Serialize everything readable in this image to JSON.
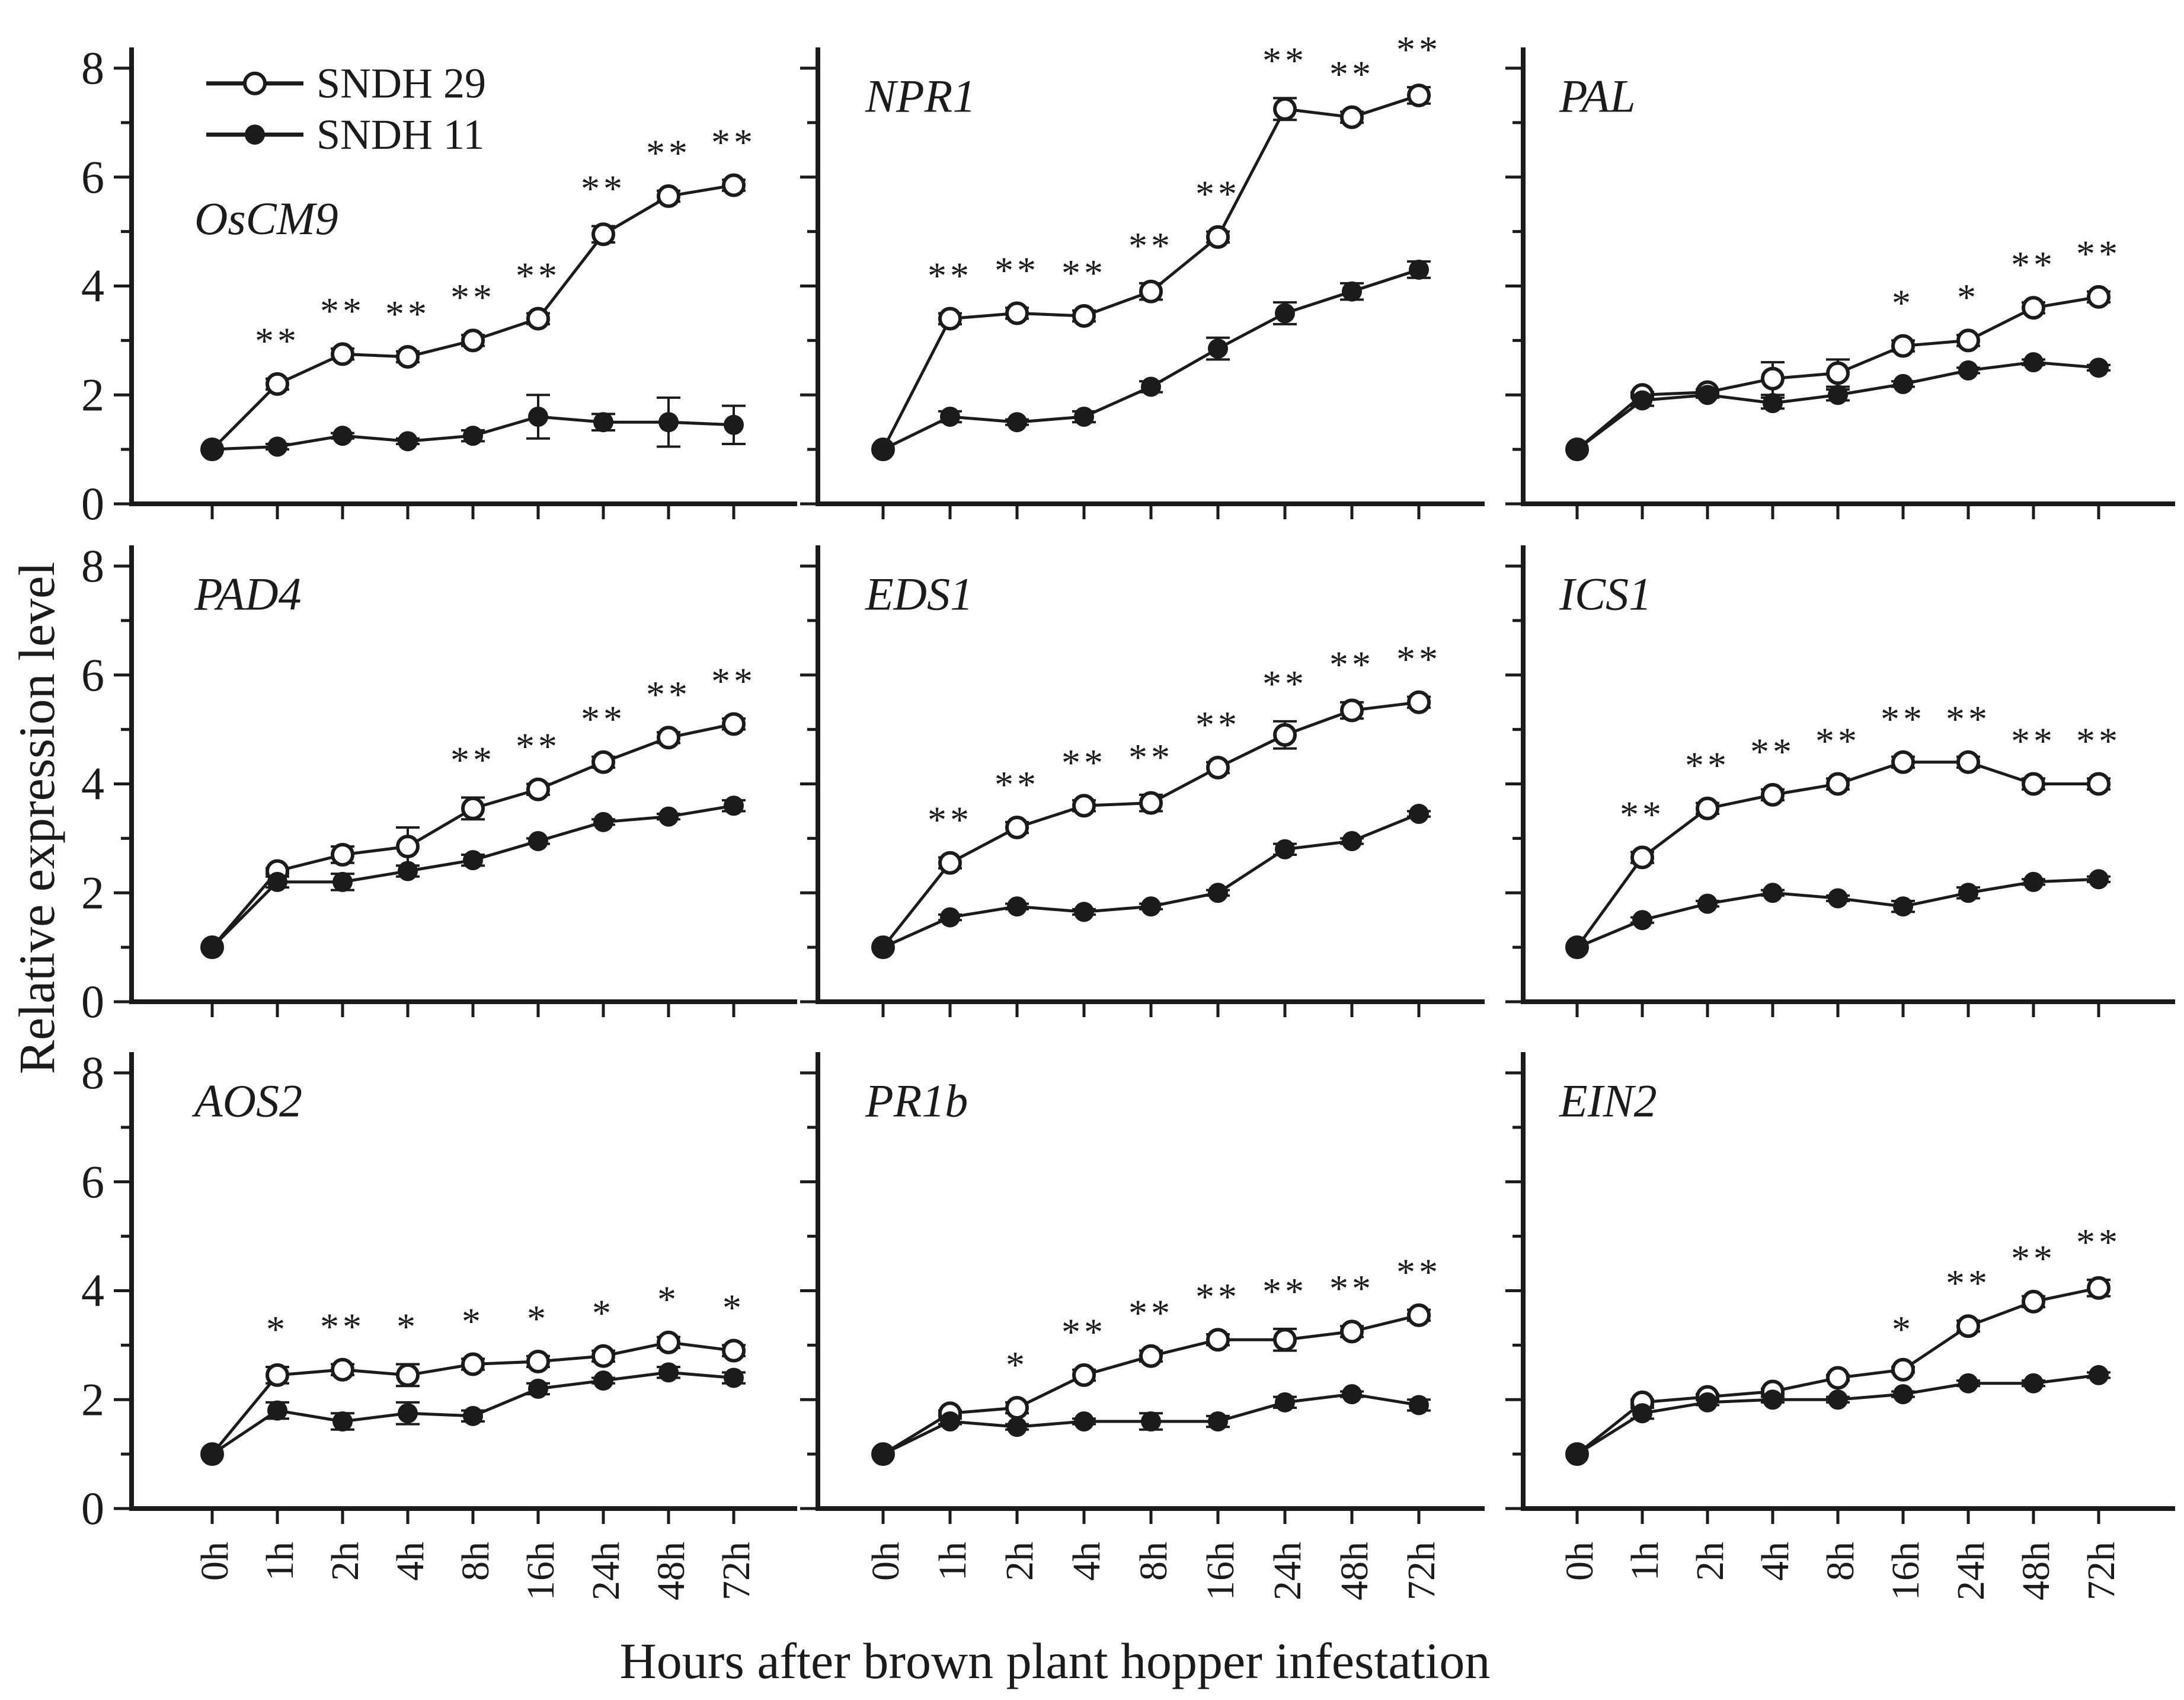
{
  "figure": {
    "y_axis_title": "Relative expression level",
    "x_axis_title": "Hours after brown plant hopper infestation",
    "categories": [
      "0h",
      "1h",
      "2h",
      "4h",
      "8h",
      "16h",
      "24h",
      "48h",
      "72h"
    ],
    "y_ticks": [
      0,
      2,
      4,
      6,
      8
    ],
    "ylim": [
      0,
      8
    ],
    "grid": "off",
    "legend_position": "top-left-first-panel",
    "legend": [
      {
        "label": "SNDH 29",
        "marker": "open-circle"
      },
      {
        "label": "SNDH 11",
        "marker": "filled-circle"
      }
    ],
    "colors": {
      "ink": "#1b1b1b",
      "background": "#ffffff"
    }
  },
  "chart_data": [
    {
      "type": "line",
      "title": "OsCM9",
      "title_position": "mid-left",
      "series": [
        {
          "name": "SNDH 29",
          "marker": "open-circle",
          "values": [
            1.0,
            2.2,
            2.75,
            2.7,
            3.0,
            3.4,
            4.95,
            5.65,
            5.85
          ],
          "errors": [
            0,
            0.1,
            0.1,
            0.1,
            0.1,
            0.1,
            0.15,
            0.1,
            0.1
          ],
          "significance": [
            "",
            "**",
            "**",
            "**",
            "**",
            "**",
            "**",
            "**",
            "**"
          ]
        },
        {
          "name": "SNDH 11",
          "marker": "filled-circle",
          "values": [
            1.0,
            1.05,
            1.25,
            1.15,
            1.25,
            1.6,
            1.5,
            1.5,
            1.45
          ],
          "errors": [
            0,
            0.05,
            0.05,
            0.05,
            0.1,
            0.4,
            0.15,
            0.45,
            0.35
          ]
        }
      ]
    },
    {
      "type": "line",
      "title": "NPR1",
      "title_position": "top-left",
      "series": [
        {
          "name": "SNDH 29",
          "marker": "open-circle",
          "values": [
            1.0,
            3.4,
            3.5,
            3.45,
            3.9,
            4.9,
            7.25,
            7.1,
            7.5
          ],
          "errors": [
            0,
            0.1,
            0.1,
            0.1,
            0.15,
            0.1,
            0.2,
            0.1,
            0.15
          ],
          "significance": [
            "",
            "**",
            "**",
            "**",
            "**",
            "**",
            "**",
            "**",
            "**"
          ]
        },
        {
          "name": "SNDH 11",
          "marker": "filled-circle",
          "values": [
            1.0,
            1.6,
            1.5,
            1.6,
            2.15,
            2.85,
            3.5,
            3.9,
            4.3
          ],
          "errors": [
            0,
            0.1,
            0.05,
            0.1,
            0.1,
            0.2,
            0.2,
            0.15,
            0.15
          ]
        }
      ]
    },
    {
      "type": "line",
      "title": "PAL",
      "title_position": "top-left",
      "series": [
        {
          "name": "SNDH 29",
          "marker": "open-circle",
          "values": [
            1.0,
            2.0,
            2.05,
            2.3,
            2.4,
            2.9,
            3.0,
            3.6,
            3.8
          ],
          "errors": [
            0,
            0.05,
            0.05,
            0.3,
            0.25,
            0.1,
            0.1,
            0.1,
            0.1
          ],
          "significance": [
            "",
            "",
            "",
            "",
            "",
            "*",
            "*",
            "**",
            "**"
          ]
        },
        {
          "name": "SNDH 11",
          "marker": "filled-circle",
          "values": [
            1.0,
            1.9,
            2.0,
            1.85,
            2.0,
            2.2,
            2.45,
            2.6,
            2.5
          ],
          "errors": [
            0,
            0.1,
            0.05,
            0.1,
            0.1,
            0.05,
            0.05,
            0.05,
            0.05
          ]
        }
      ]
    },
    {
      "type": "line",
      "title": "PAD4",
      "title_position": "top-left",
      "series": [
        {
          "name": "SNDH 29",
          "marker": "open-circle",
          "values": [
            1.0,
            2.4,
            2.7,
            2.85,
            3.55,
            3.9,
            4.4,
            4.85,
            5.1
          ],
          "errors": [
            0,
            0.05,
            0.15,
            0.35,
            0.2,
            0.1,
            0.1,
            0.1,
            0.1
          ],
          "significance": [
            "",
            "",
            "",
            "",
            "**",
            "**",
            "**",
            "**",
            "**"
          ]
        },
        {
          "name": "SNDH 11",
          "marker": "filled-circle",
          "values": [
            1.0,
            2.2,
            2.2,
            2.4,
            2.6,
            2.95,
            3.3,
            3.4,
            3.6
          ],
          "errors": [
            0,
            0.1,
            0.15,
            0.1,
            0.1,
            0.05,
            0.05,
            0.05,
            0.1
          ]
        }
      ]
    },
    {
      "type": "line",
      "title": "EDS1",
      "title_position": "top-left",
      "series": [
        {
          "name": "SNDH 29",
          "marker": "open-circle",
          "values": [
            1.0,
            2.55,
            3.2,
            3.6,
            3.65,
            4.3,
            4.9,
            5.35,
            5.5
          ],
          "errors": [
            0,
            0.1,
            0.1,
            0.1,
            0.15,
            0.1,
            0.25,
            0.15,
            0.1
          ],
          "significance": [
            "",
            "**",
            "**",
            "**",
            "**",
            "**",
            "**",
            "**",
            "**"
          ]
        },
        {
          "name": "SNDH 11",
          "marker": "filled-circle",
          "values": [
            1.0,
            1.55,
            1.75,
            1.65,
            1.75,
            2.0,
            2.8,
            2.95,
            3.45
          ],
          "errors": [
            0,
            0.05,
            0.05,
            0.05,
            0.05,
            0.05,
            0.1,
            0.05,
            0.05
          ]
        }
      ]
    },
    {
      "type": "line",
      "title": "ICS1",
      "title_position": "top-left",
      "series": [
        {
          "name": "SNDH 29",
          "marker": "open-circle",
          "values": [
            1.0,
            2.65,
            3.55,
            3.8,
            4.0,
            4.4,
            4.4,
            4.0,
            4.0
          ],
          "errors": [
            0,
            0.1,
            0.1,
            0.1,
            0.1,
            0.1,
            0.1,
            0.1,
            0.1
          ],
          "significance": [
            "",
            "**",
            "**",
            "**",
            "**",
            "**",
            "**",
            "**",
            "**"
          ]
        },
        {
          "name": "SNDH 11",
          "marker": "filled-circle",
          "values": [
            1.0,
            1.5,
            1.8,
            2.0,
            1.9,
            1.75,
            2.0,
            2.2,
            2.25
          ],
          "errors": [
            0,
            0.05,
            0.05,
            0.05,
            0.05,
            0.1,
            0.1,
            0.05,
            0.05
          ]
        }
      ]
    },
    {
      "type": "line",
      "title": "AOS2",
      "title_position": "top-left",
      "series": [
        {
          "name": "SNDH 29",
          "marker": "open-circle",
          "values": [
            1.0,
            2.45,
            2.55,
            2.45,
            2.65,
            2.7,
            2.8,
            3.05,
            2.9
          ],
          "errors": [
            0,
            0.15,
            0.1,
            0.2,
            0.1,
            0.1,
            0.1,
            0.1,
            0.1
          ],
          "significance": [
            "",
            "*",
            "**",
            "*",
            "*",
            "*",
            "*",
            "*",
            "*"
          ]
        },
        {
          "name": "SNDH 11",
          "marker": "filled-circle",
          "values": [
            1.0,
            1.8,
            1.6,
            1.75,
            1.7,
            2.2,
            2.35,
            2.5,
            2.4
          ],
          "errors": [
            0,
            0.15,
            0.15,
            0.2,
            0.1,
            0.1,
            0.05,
            0.1,
            0.1
          ]
        }
      ]
    },
    {
      "type": "line",
      "title": "PR1b",
      "title_position": "top-left",
      "series": [
        {
          "name": "SNDH 29",
          "marker": "open-circle",
          "values": [
            1.0,
            1.75,
            1.85,
            2.45,
            2.8,
            3.1,
            3.1,
            3.25,
            3.55
          ],
          "errors": [
            0,
            0.05,
            0.1,
            0.1,
            0.1,
            0.1,
            0.2,
            0.1,
            0.1
          ],
          "significance": [
            "",
            "",
            "*",
            "**",
            "**",
            "**",
            "**",
            "**",
            "**"
          ]
        },
        {
          "name": "SNDH 11",
          "marker": "filled-circle",
          "values": [
            1.0,
            1.6,
            1.5,
            1.6,
            1.6,
            1.6,
            1.95,
            2.1,
            1.9
          ],
          "errors": [
            0,
            0.05,
            0.05,
            0.05,
            0.15,
            0.1,
            0.1,
            0.05,
            0.1
          ]
        }
      ]
    },
    {
      "type": "line",
      "title": "EIN2",
      "title_position": "top-left",
      "series": [
        {
          "name": "SNDH 29",
          "marker": "open-circle",
          "values": [
            1.0,
            1.95,
            2.05,
            2.15,
            2.4,
            2.55,
            3.35,
            3.8,
            4.05
          ],
          "errors": [
            0,
            0.05,
            0.05,
            0.05,
            0.05,
            0.05,
            0.1,
            0.1,
            0.15
          ],
          "significance": [
            "",
            "",
            "",
            "",
            "",
            "*",
            "**",
            "**",
            "**"
          ]
        },
        {
          "name": "SNDH 11",
          "marker": "filled-circle",
          "values": [
            1.0,
            1.75,
            1.95,
            2.0,
            2.0,
            2.1,
            2.3,
            2.3,
            2.45
          ],
          "errors": [
            0,
            0.1,
            0.05,
            0.05,
            0.05,
            0.05,
            0.05,
            0.05,
            0.05
          ]
        }
      ]
    }
  ]
}
